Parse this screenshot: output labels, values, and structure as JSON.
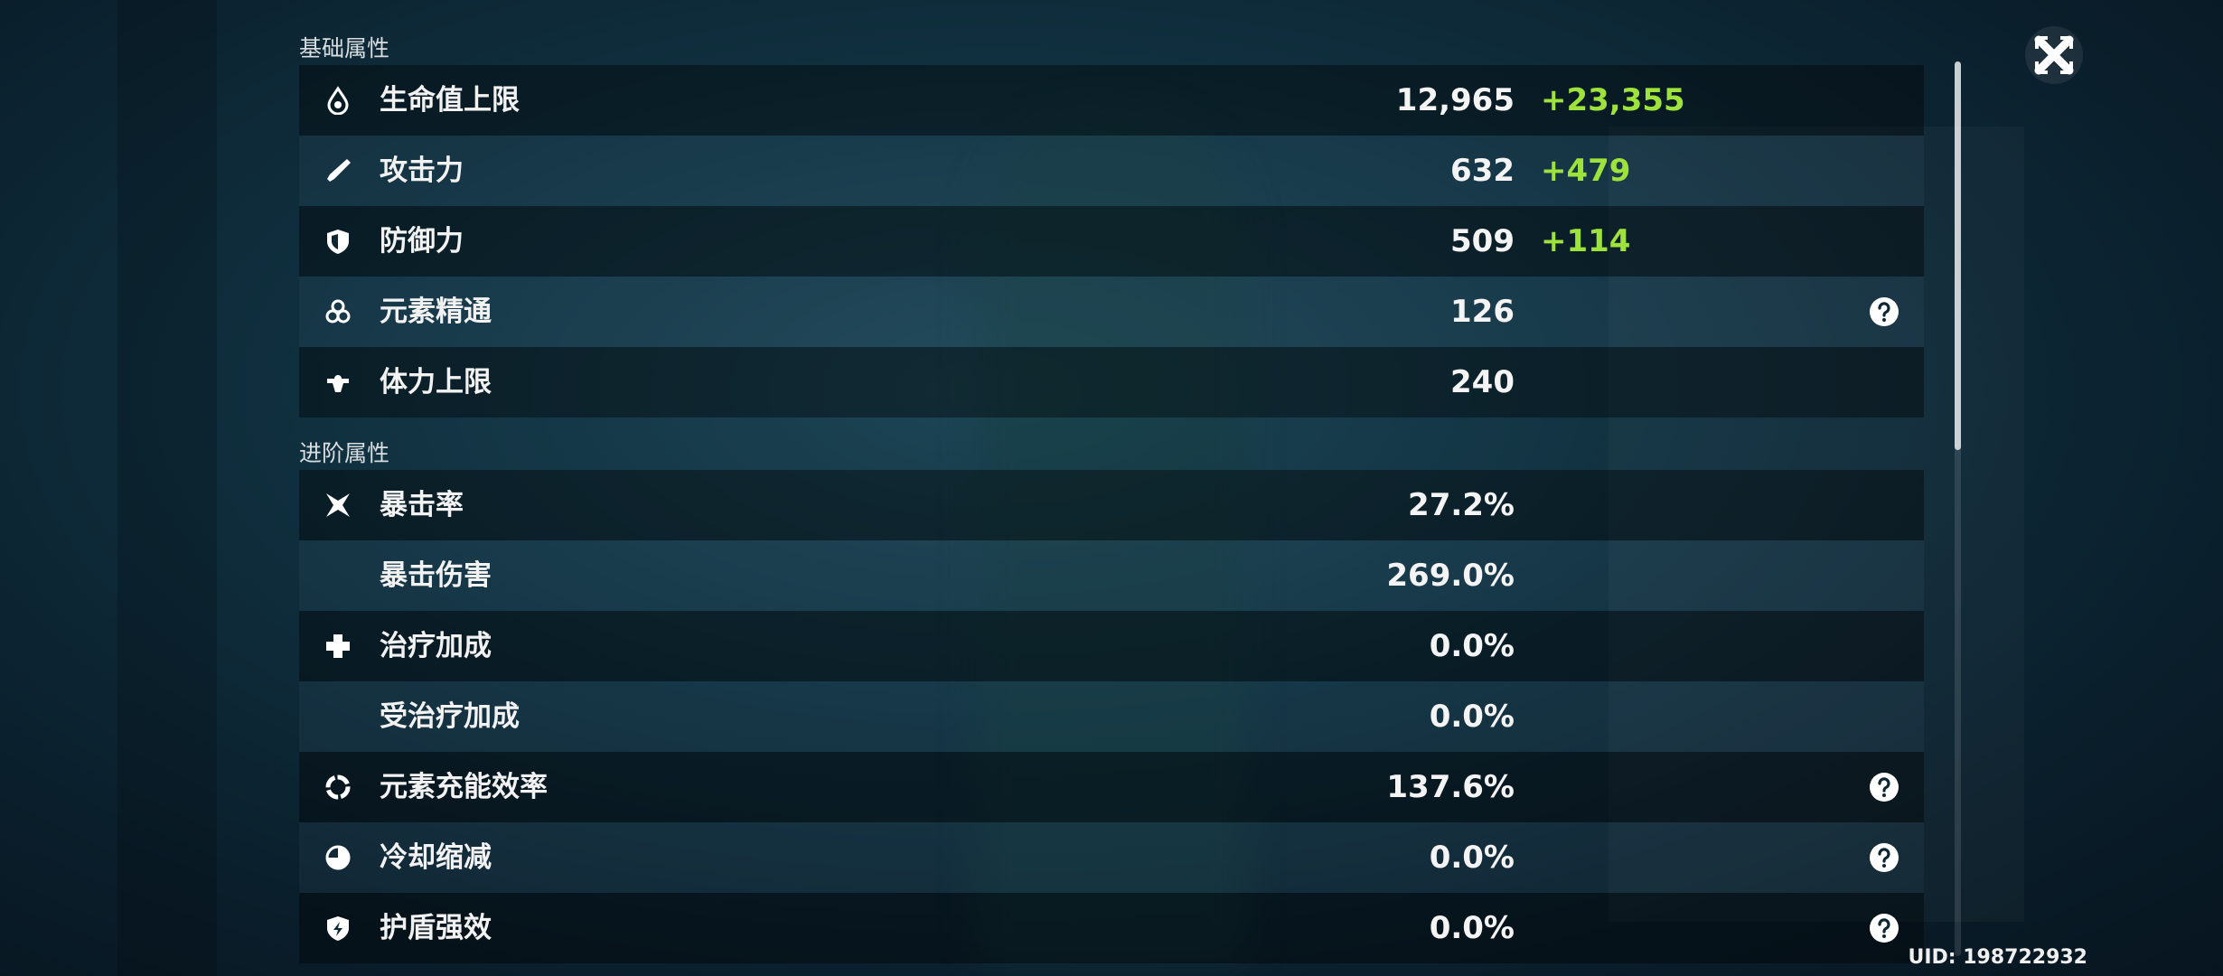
{
  "sections": [
    {
      "title": "基础属性",
      "rows": [
        {
          "label": "生命值上限",
          "value": "12,965",
          "bonus": "+23,355"
        },
        {
          "label": "攻击力",
          "value": "632",
          "bonus": "+479"
        },
        {
          "label": "防御力",
          "value": "509",
          "bonus": "+114"
        },
        {
          "label": "元素精通",
          "value": "126",
          "help": true
        },
        {
          "label": "体力上限",
          "value": "240"
        }
      ]
    },
    {
      "title": "进阶属性",
      "rows": [
        {
          "label": "暴击率",
          "value": "27.2%"
        },
        {
          "label": "暴击伤害",
          "value": "269.0%"
        },
        {
          "label": "治疗加成",
          "value": "0.0%"
        },
        {
          "label": "受治疗加成",
          "value": "0.0%"
        },
        {
          "label": "元素充能效率",
          "value": "137.6%",
          "help": true
        },
        {
          "label": "冷却缩减",
          "value": "0.0%",
          "help": true
        },
        {
          "label": "护盾强效",
          "value": "0.0%",
          "help": true
        }
      ]
    }
  ],
  "uid": "UID: 198722932"
}
